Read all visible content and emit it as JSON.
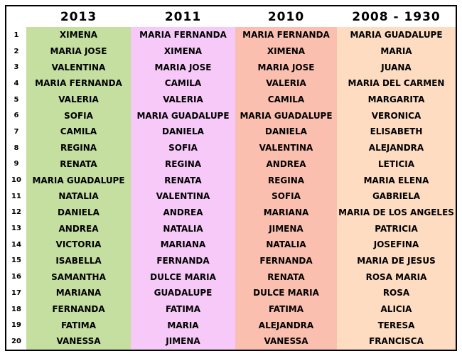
{
  "headers": [
    "2013",
    "2011",
    "2010",
    "2008 - 1930"
  ],
  "rows": [
    {
      "rank": "1",
      "y2013": "XIMENA",
      "y2011": "MARIA FERNANDA",
      "y2010": "MARIA FERNANDA",
      "y2008": "MARIA GUADALUPE"
    },
    {
      "rank": "2",
      "y2013": "MARIA JOSE",
      "y2011": "XIMENA",
      "y2010": "XIMENA",
      "y2008": "MARIA"
    },
    {
      "rank": "3",
      "y2013": "VALENTINA",
      "y2011": "MARIA JOSE",
      "y2010": "MARIA JOSE",
      "y2008": "JUANA"
    },
    {
      "rank": "4",
      "y2013": "MARIA FERNANDA",
      "y2011": "CAMILA",
      "y2010": "VALERIA",
      "y2008": "MARIA DEL CARMEN"
    },
    {
      "rank": "5",
      "y2013": "VALERIA",
      "y2011": "VALERIA",
      "y2010": "CAMILA",
      "y2008": "MARGARITA"
    },
    {
      "rank": "6",
      "y2013": "SOFIA",
      "y2011": "MARIA GUADALUPE",
      "y2010": "MARIA GUADALUPE",
      "y2008": "VERONICA"
    },
    {
      "rank": "7",
      "y2013": "CAMILA",
      "y2011": "DANIELA",
      "y2010": "DANIELA",
      "y2008": "ELISABETH"
    },
    {
      "rank": "8",
      "y2013": "REGINA",
      "y2011": "SOFIA",
      "y2010": "VALENTINA",
      "y2008": "ALEJANDRA"
    },
    {
      "rank": "9",
      "y2013": "RENATA",
      "y2011": "REGINA",
      "y2010": "ANDREA",
      "y2008": "LETICIA"
    },
    {
      "rank": "10",
      "y2013": "MARIA GUADALUPE",
      "y2011": "RENATA",
      "y2010": "REGINA",
      "y2008": "MARIA ELENA"
    },
    {
      "rank": "11",
      "y2013": "NATALIA",
      "y2011": "VALENTINA",
      "y2010": "SOFIA",
      "y2008": "GABRIELA"
    },
    {
      "rank": "12",
      "y2013": "DANIELA",
      "y2011": "ANDREA",
      "y2010": "MARIANA",
      "y2008": "MARIA DE LOS ANGELES"
    },
    {
      "rank": "13",
      "y2013": "ANDREA",
      "y2011": "NATALIA",
      "y2010": "JIMENA",
      "y2008": "PATRICIA"
    },
    {
      "rank": "14",
      "y2013": "VICTORIA",
      "y2011": "MARIANA",
      "y2010": "NATALIA",
      "y2008": "JOSEFINA"
    },
    {
      "rank": "15",
      "y2013": "ISABELLA",
      "y2011": "FERNANDA",
      "y2010": "FERNANDA",
      "y2008": "MARIA DE JESUS"
    },
    {
      "rank": "16",
      "y2013": "SAMANTHA",
      "y2011": "DULCE MARIA",
      "y2010": "RENATA",
      "y2008": "ROSA MARIA"
    },
    {
      "rank": "17",
      "y2013": "MARIANA",
      "y2011": "GUADALUPE",
      "y2010": "DULCE MARIA",
      "y2008": "ROSA"
    },
    {
      "rank": "18",
      "y2013": "FERNANDA",
      "y2011": "FATIMA",
      "y2010": "FATIMA",
      "y2008": "ALICIA"
    },
    {
      "rank": "19",
      "y2013": "FATIMA",
      "y2011": "MARIA",
      "y2010": "ALEJANDRA",
      "y2008": "TERESA"
    },
    {
      "rank": "20",
      "y2013": "VANESSA",
      "y2011": "JIMENA",
      "y2010": "VANESSA",
      "y2008": "FRANCISCA"
    }
  ],
  "colors": {
    "col_2013": "#c4dfa0",
    "col_2011": "#f6c9f9",
    "col_2010": "#fbbfaf",
    "col_2008": "#fddcc1"
  }
}
